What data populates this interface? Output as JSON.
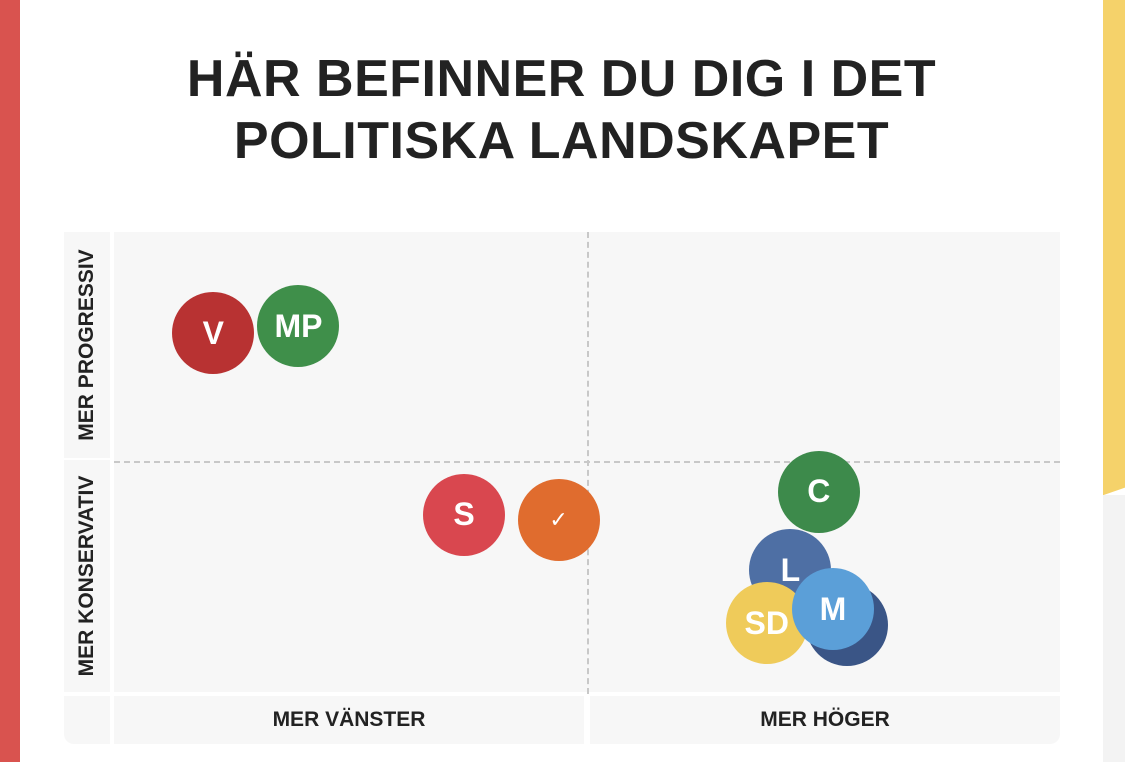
{
  "page": {
    "title_line1": "HÄR BEFINNER DU DIG I DET",
    "title_line2": "POLITISKA LANDSKAPET"
  },
  "axes": {
    "y_top": "MER PROGRESSIV",
    "y_bottom": "MER KONSERVATIV",
    "x_left": "MER VÄNSTER",
    "x_right": "MER HÖGER"
  },
  "colors": {
    "left_edge": "#d9534f",
    "right_edge": "#f5d26a",
    "user_marker": "#e06c2e"
  },
  "chart_data": {
    "type": "scatter",
    "xlim": [
      -1,
      1
    ],
    "ylim": [
      -1,
      1
    ],
    "grid": false,
    "points": [
      {
        "label": "V",
        "x": -0.79,
        "y": 0.56,
        "color": "#b83232"
      },
      {
        "label": "MP",
        "x": -0.61,
        "y": 0.59,
        "color": "#3f8f4a"
      },
      {
        "label": "S",
        "x": -0.26,
        "y": -0.23,
        "color": "#d9474f"
      },
      {
        "label": "✓",
        "x": -0.06,
        "y": -0.25,
        "color": "#e06c2e"
      },
      {
        "label": "C",
        "x": 0.49,
        "y": -0.13,
        "color": "#3d8a4b"
      },
      {
        "label": "",
        "x": 0.55,
        "y": -0.71,
        "color": "#3a5586"
      },
      {
        "label": "L",
        "x": 0.43,
        "y": -0.47,
        "color": "#4e6fa4"
      },
      {
        "label": "SD",
        "x": 0.38,
        "y": -0.7,
        "color": "#efcb5a"
      },
      {
        "label": "M",
        "x": 0.52,
        "y": -0.64,
        "color": "#5b9fd8"
      }
    ]
  }
}
